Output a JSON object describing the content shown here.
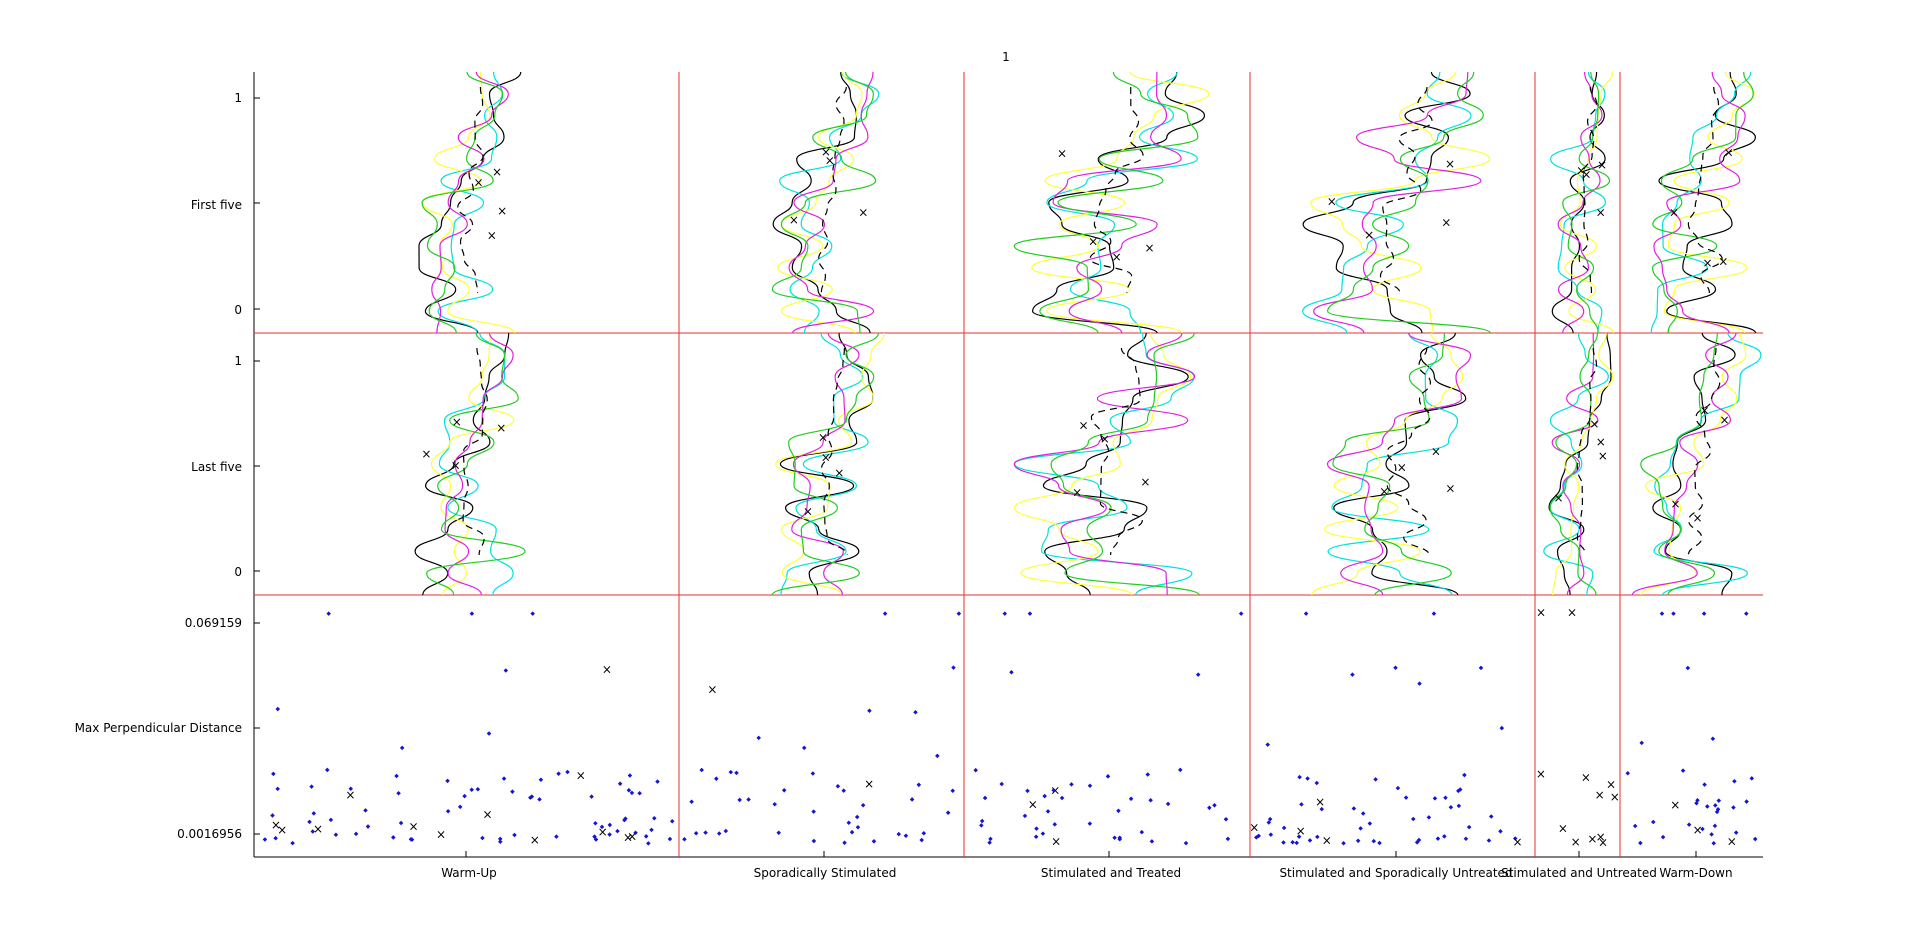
{
  "figure_title": "1",
  "colors": {
    "divider": "#e8312b",
    "axis": "#000000",
    "dashed": "#000000",
    "points": "#1414d6",
    "crosses_main": "#e0502a",
    "crosses_alt": "#6a5acd",
    "curve_palette": [
      "#000000",
      "#00e0e0",
      "#ffff33",
      "#e020e0",
      "#22cc22",
      "#ff8800"
    ]
  },
  "chart_data": {
    "type": "scatter",
    "row_labels": [
      "First five",
      "Last five",
      "Max Perpendicular Distance"
    ],
    "phase_labels": [
      "Warm-Up",
      "Sporadically Stimulated",
      "Stimulated and Treated",
      "Stimulated and Sporadically Untreated",
      "Stimulated and Untreated",
      "Warm-Down"
    ],
    "curve_rows": {
      "first_five": {
        "ticks": [
          "1",
          "0"
        ],
        "ylim": [
          0,
          1
        ]
      },
      "last_five": {
        "ticks": [
          "1",
          "0"
        ],
        "ylim": [
          0,
          1
        ]
      }
    },
    "max_perp_row": {
      "ticks": [
        "0.069159",
        "0.0016956"
      ],
      "ylim": [
        0.0016956,
        0.069159
      ]
    },
    "point_counts": [
      85,
      45,
      45,
      60,
      12,
      35
    ],
    "grid": false,
    "legend": "none"
  }
}
